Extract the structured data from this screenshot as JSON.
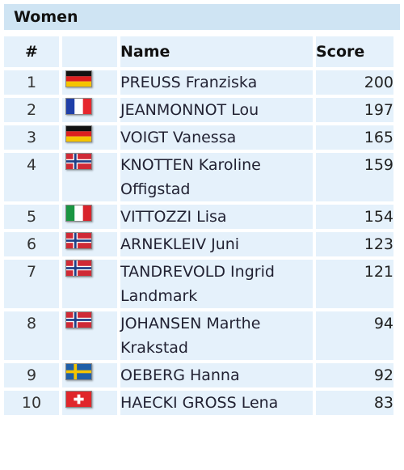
{
  "header": {
    "title": "Women"
  },
  "columns": {
    "rank": "#",
    "name": "Name",
    "score": "Score"
  },
  "rows": [
    {
      "rank": "1",
      "flag": "germany-flag-icon",
      "name": "PREUSS Franziska",
      "score": "200"
    },
    {
      "rank": "2",
      "flag": "france-flag-icon",
      "name": "JEANMONNOT Lou",
      "score": "197"
    },
    {
      "rank": "3",
      "flag": "germany-flag-icon",
      "name": "VOIGT Vanessa",
      "score": "165"
    },
    {
      "rank": "4",
      "flag": "norway-flag-icon",
      "name": "KNOTTEN Karoline Offigstad",
      "score": "159"
    },
    {
      "rank": "5",
      "flag": "italy-flag-icon",
      "name": "VITTOZZI Lisa",
      "score": "154"
    },
    {
      "rank": "6",
      "flag": "norway-flag-icon",
      "name": "ARNEKLEIV Juni",
      "score": "123"
    },
    {
      "rank": "7",
      "flag": "norway-flag-icon",
      "name": "TANDREVOLD Ingrid Landmark",
      "score": "121"
    },
    {
      "rank": "8",
      "flag": "norway-flag-icon",
      "name": "JOHANSEN Marthe Krakstad",
      "score": "94"
    },
    {
      "rank": "9",
      "flag": "sweden-flag-icon",
      "name": "OEBERG Hanna",
      "score": "92"
    },
    {
      "rank": "10",
      "flag": "switzerland-flag-icon",
      "name": "HAECKI GROSS Lena",
      "score": "83"
    }
  ],
  "colors": {
    "header_bg": "#cfe4f3",
    "cell_bg": "#e5f1fb"
  }
}
